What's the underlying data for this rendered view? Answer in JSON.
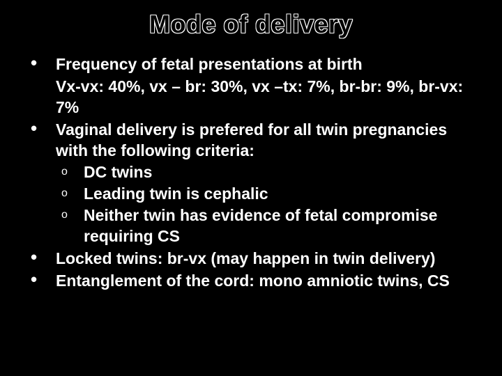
{
  "colors": {
    "background": "#000000",
    "text": "#ffffff",
    "title_fill": "#000000",
    "title_outline": "#ffffff"
  },
  "typography": {
    "title_fontsize": 36,
    "body_fontsize": 23,
    "font_family": "Arial",
    "font_weight": "bold"
  },
  "title": "Mode of delivery",
  "bullets": [
    {
      "text": "Frequency of fetal presentations at birth",
      "continuation": "Vx-vx: 40%, vx – br: 30%, vx –tx: 7%, br-br: 9%, br-vx: 7%"
    },
    {
      "text": "Vaginal delivery is prefered for all twin pregnancies with the following criteria:",
      "sub": [
        "DC twins",
        "Leading twin is cephalic",
        "Neither twin has evidence of fetal compromise requiring CS"
      ]
    },
    {
      "text": "Locked twins: br-vx (may happen in twin delivery)"
    },
    {
      "text": "Entanglement of the cord: mono amniotic twins, CS"
    }
  ]
}
